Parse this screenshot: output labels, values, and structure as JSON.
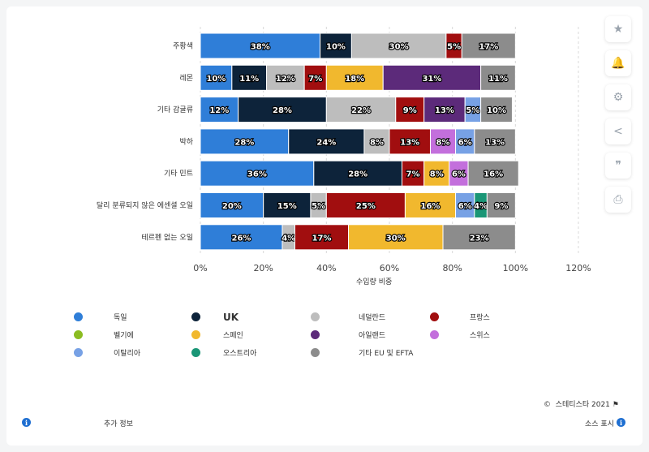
{
  "chart_data": {
    "type": "bar",
    "orientation": "horizontal",
    "stacked": true,
    "xlabel": "수입량 비중",
    "xlim": [
      0,
      120
    ],
    "xticks": [
      "0%",
      "20%",
      "40%",
      "60%",
      "80%",
      "100%",
      "120%"
    ],
    "categories": [
      "주황색",
      "레몬",
      "기타 감귤류",
      "박하",
      "기타 민트",
      "달리 분류되지 않은 에센셜 오일",
      "테르펜 없는 오일"
    ],
    "series": [
      {
        "name": "독일",
        "color": "#2f7ed8",
        "values": [
          38,
          10,
          12,
          28,
          36,
          20,
          26
        ],
        "labels": [
          "38%",
          "10%",
          "12%",
          "28%",
          "36%",
          "20%",
          "26%"
        ]
      },
      {
        "name": "UK",
        "color": "#0d233a",
        "values": [
          10,
          11,
          28,
          24,
          28,
          15,
          0
        ],
        "labels": [
          "10%",
          "11%",
          "28%",
          "24%",
          "28%",
          "15%",
          ""
        ]
      },
      {
        "name": "네덜란드",
        "color": "#bdbdbd",
        "values": [
          30,
          12,
          22,
          8,
          0,
          5,
          4
        ],
        "labels": [
          "30%",
          "12%",
          "22%",
          "8%",
          "",
          "5%",
          "4%"
        ]
      },
      {
        "name": "프랑스",
        "color": "#a10e0f",
        "values": [
          5,
          7,
          9,
          13,
          7,
          25,
          17
        ],
        "labels": [
          "5%",
          "7%",
          "9%",
          "13%",
          "7%",
          "25%",
          "17%"
        ]
      },
      {
        "name": "벨기에",
        "color": "#8bbc21",
        "values": [
          0,
          0,
          0,
          0,
          0,
          0,
          0
        ],
        "labels": [
          "",
          "",
          "",
          "",
          "",
          "",
          ""
        ]
      },
      {
        "name": "스페인",
        "color": "#f1b82e",
        "values": [
          0,
          18,
          0,
          0,
          8,
          16,
          30
        ],
        "labels": [
          "",
          "18%",
          "",
          "",
          "8%",
          "16%",
          "30%"
        ]
      },
      {
        "name": "아일랜드",
        "color": "#5c2a7a",
        "values": [
          0,
          31,
          13,
          0,
          0,
          0,
          0
        ],
        "labels": [
          "",
          "31%",
          "13%",
          "",
          "",
          "",
          ""
        ]
      },
      {
        "name": "스위스",
        "color": "#c36fdc",
        "values": [
          0,
          0,
          0,
          8,
          6,
          0,
          0
        ],
        "labels": [
          "",
          "",
          "",
          "8%",
          "6%",
          "",
          ""
        ]
      },
      {
        "name": "이탈리아",
        "color": "#77a1e5",
        "values": [
          0,
          0,
          5,
          6,
          0,
          6,
          0
        ],
        "labels": [
          "",
          "",
          "5%",
          "6%",
          "",
          "6%",
          ""
        ]
      },
      {
        "name": "오스트리아",
        "color": "#1a9676",
        "values": [
          0,
          0,
          0,
          0,
          0,
          4,
          0
        ],
        "labels": [
          "",
          "",
          "",
          "",
          "",
          "4%",
          ""
        ]
      },
      {
        "name": "기타 EU 및 EFTA",
        "color": "#8c8c8c",
        "values": [
          17,
          11,
          10,
          13,
          16,
          9,
          23
        ],
        "labels": [
          "17%",
          "11%",
          "10%",
          "13%",
          "16%",
          "9%",
          "23%"
        ]
      }
    ]
  },
  "footer": {
    "info_label": "추가 정보",
    "copyright": "스테티스타 2021",
    "source_label": "소스 표시"
  },
  "side_buttons": [
    "star-icon",
    "bell-icon",
    "gear-icon",
    "share-icon",
    "quote-icon",
    "print-icon"
  ]
}
